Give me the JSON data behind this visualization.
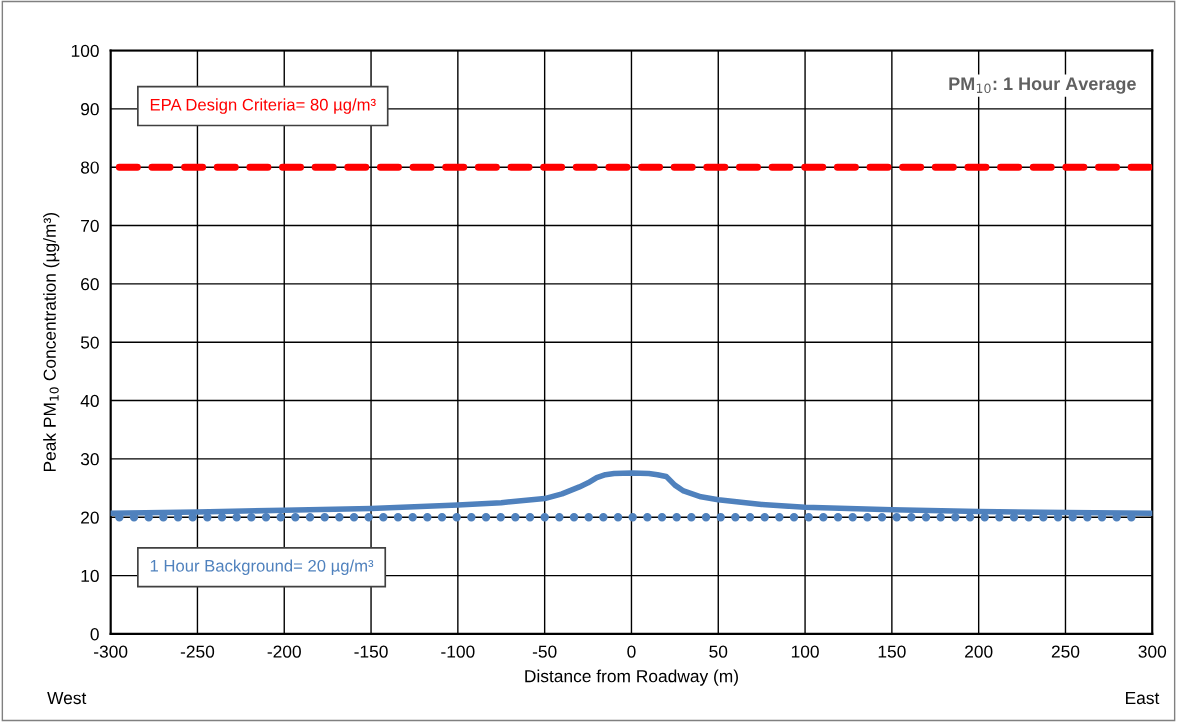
{
  "chart_data": {
    "type": "line",
    "title": "PM$_{10}$: 1 Hour Average",
    "xlabel": "Distance from Roadway (m)",
    "ylabel": "Peak PM$_{10}$ Concentration (µg/m³)",
    "annotations": [
      "West",
      "East"
    ],
    "series": [
      {
        "color": "#4f81bd",
        "x": [
          -300,
          -250,
          -200,
          -150,
          -100,
          -75,
          -50,
          -40,
          -30,
          -25,
          -20,
          -15,
          -10,
          0,
          10,
          15,
          20,
          25,
          30,
          40,
          50,
          75,
          100,
          150,
          200,
          250,
          300
        ],
        "values": [
          20.7,
          20.9,
          21.2,
          21.5,
          22.1,
          22.5,
          23.2,
          24.0,
          25.2,
          25.9,
          26.8,
          27.3,
          27.5,
          27.6,
          27.5,
          27.3,
          27.0,
          25.5,
          24.5,
          23.5,
          23.0,
          22.2,
          21.7,
          21.3,
          21.0,
          20.8,
          20.7
        ]
      }
    ],
    "xlim": [
      -300,
      300
    ],
    "xticks": [
      -300,
      -250,
      -200,
      -150,
      -100,
      -50,
      0,
      50,
      100,
      150,
      200,
      250,
      300
    ],
    "ylim": [
      0,
      100
    ],
    "yticks": [
      0,
      10,
      20,
      30,
      40,
      50,
      60,
      70,
      80,
      90,
      100
    ],
    "ref_lines": [
      {
        "axis": "y",
        "value": 80,
        "label": "EPA Design Criteria= 80 µg/m³",
        "color": "#ff0000",
        "line_style": "dashed"
      },
      {
        "axis": "y",
        "value": 20,
        "label": "1 Hour Background= 20 µg/m³",
        "color": "#4f81bd",
        "line_style": "dotted"
      }
    ],
    "grid": true,
    "marker": "none",
    "line_style": "solid"
  }
}
